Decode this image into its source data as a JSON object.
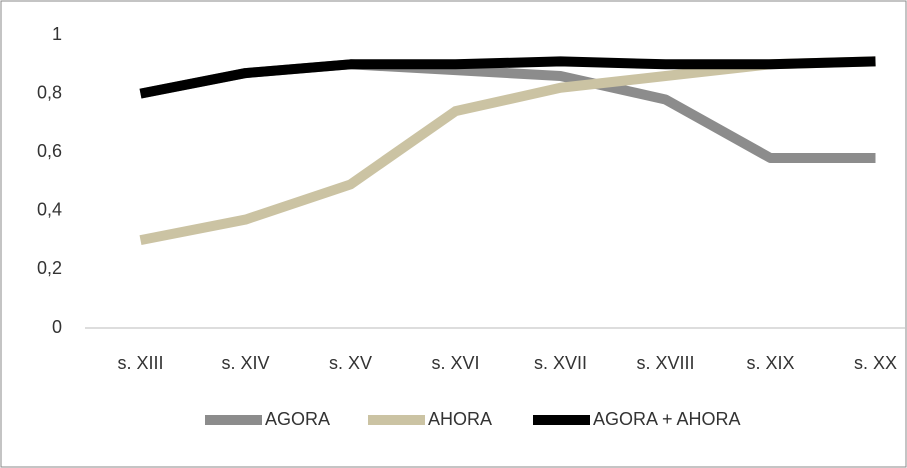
{
  "chart_data": {
    "type": "line",
    "categories": [
      "s. XIII",
      "s. XIV",
      "s. XV",
      "s. XVI",
      "s. XVII",
      "s. XVIII",
      "s. XIX",
      "s. XX"
    ],
    "series": [
      {
        "name": "AGORA",
        "color": "#8c8c8c",
        "values": [
          0.8,
          0.87,
          0.9,
          0.88,
          0.86,
          0.78,
          0.58,
          0.58
        ]
      },
      {
        "name": "AHORA",
        "color": "#cbc3a3",
        "values": [
          0.3,
          0.37,
          0.49,
          0.74,
          0.82,
          0.86,
          0.9,
          0.91
        ]
      },
      {
        "name": "AGORA + AHORA",
        "color": "#000000",
        "values": [
          0.8,
          0.87,
          0.9,
          0.9,
          0.91,
          0.9,
          0.9,
          0.91
        ]
      }
    ],
    "ylim": [
      0,
      1
    ],
    "yticks": [
      0,
      {
        "value": 0.2,
        "label": "0,2"
      },
      {
        "value": 0.4,
        "label": "0,4"
      },
      {
        "value": 0.6,
        "label": "0,6"
      },
      {
        "value": 0.8,
        "label": "0,8"
      },
      1
    ],
    "grid": false,
    "legend": "bottom"
  }
}
